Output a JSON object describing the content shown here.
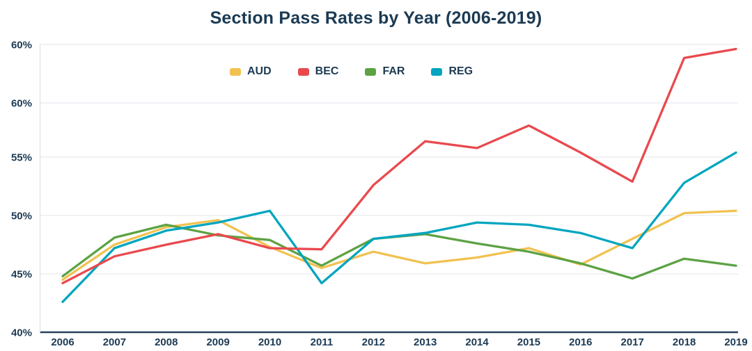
{
  "chart_data": {
    "type": "line",
    "title": "Section Pass Rates by Year (2006-2019)",
    "categories": [
      "2006",
      "2007",
      "2008",
      "2009",
      "2010",
      "2011",
      "2012",
      "2013",
      "2014",
      "2015",
      "2016",
      "2017",
      "2018",
      "2019"
    ],
    "series": [
      {
        "name": "AUD",
        "color": "#F1C252",
        "values": [
          44.5,
          47.5,
          49.0,
          49.6,
          47.3,
          45.5,
          46.9,
          45.9,
          46.4,
          47.2,
          45.8,
          48.0,
          50.2,
          50.4
        ]
      },
      {
        "name": "BEC",
        "color": "#E9494E",
        "values": [
          44.2,
          46.5,
          47.5,
          48.4,
          47.2,
          47.1,
          52.6,
          55.7,
          55.4,
          56.4,
          55.2,
          52.9,
          59.4,
          59.8
        ]
      },
      {
        "name": "FAR",
        "color": "#5CA244",
        "values": [
          44.8,
          48.1,
          49.2,
          48.3,
          47.9,
          45.7,
          48.0,
          48.4,
          47.6,
          46.9,
          45.9,
          44.6,
          46.3,
          45.7
        ]
      },
      {
        "name": "REG",
        "color": "#00A5BF",
        "values": [
          42.6,
          47.2,
          48.7,
          49.4,
          50.4,
          44.2,
          48.0,
          48.5,
          49.4,
          49.2,
          48.5,
          47.2,
          52.8,
          55.2
        ]
      }
    ],
    "xlabel": "",
    "ylabel": "",
    "y_axis": {
      "tick_labels": [
        "40%",
        "45%",
        "50%",
        "55%",
        "60%",
        "60%"
      ],
      "range": [
        40,
        60
      ]
    },
    "grid": true,
    "legend_position": "top-center",
    "colors": {
      "text": "#1C3A53",
      "gridline": "#E8EAF0",
      "axis_line": "#26425A"
    }
  }
}
